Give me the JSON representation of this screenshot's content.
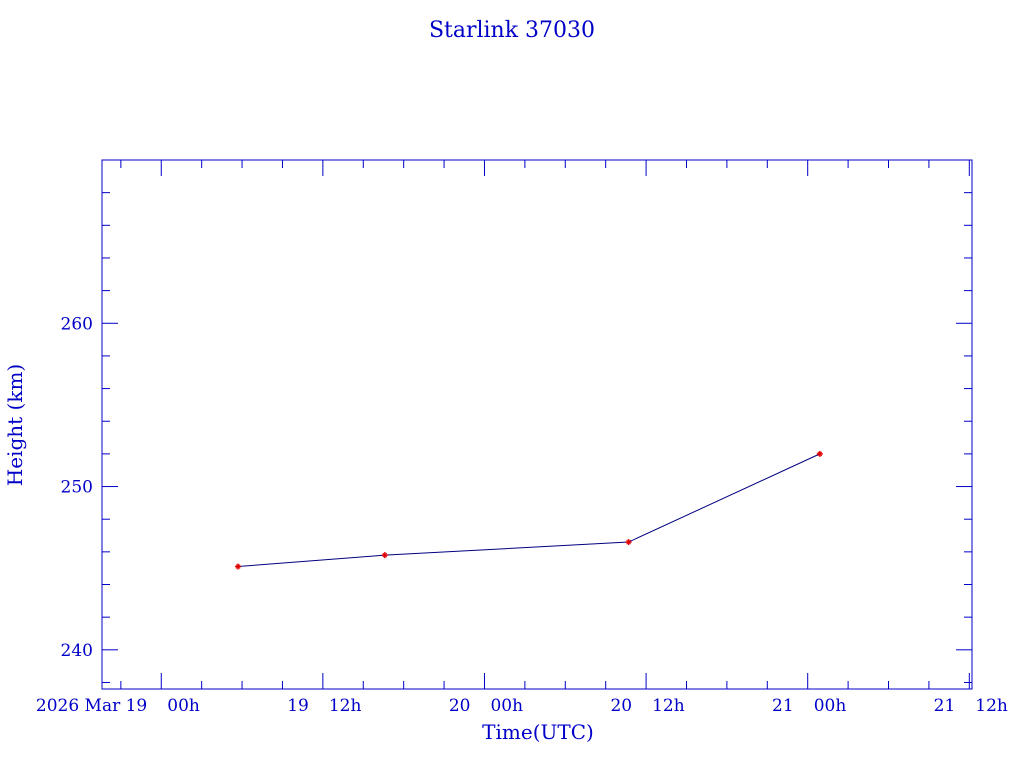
{
  "chart_data": {
    "type": "line",
    "title": "Starlink 37030",
    "xlabel": "Time(UTC)",
    "ylabel": "Height (km)",
    "x_unit": "hours since 2026 Mar 19 00h UTC",
    "xlim": [
      -4.4,
      60.2
    ],
    "ylim": [
      237.6,
      270
    ],
    "x_ticks": [
      0,
      12,
      24,
      36,
      48,
      60
    ],
    "x_tick_labels": [
      "2026 Mar 19  00h",
      "19  12h",
      "20  00h",
      "20  12h",
      "21  00h",
      "21  12h"
    ],
    "x_minor_step": 3,
    "y_ticks": [
      240,
      250,
      260
    ],
    "y_tick_labels": [
      "240",
      "250",
      "260"
    ],
    "y_minor_step": 2,
    "grid": false,
    "series": [
      {
        "name": "Height",
        "x": [
          5.7,
          16.6,
          34.7,
          48.9
        ],
        "y": [
          245.1,
          245.8,
          246.6,
          252.0
        ],
        "line_color": "#000080",
        "marker_color": "#e00000"
      }
    ],
    "axis_color": "#0000c8"
  }
}
